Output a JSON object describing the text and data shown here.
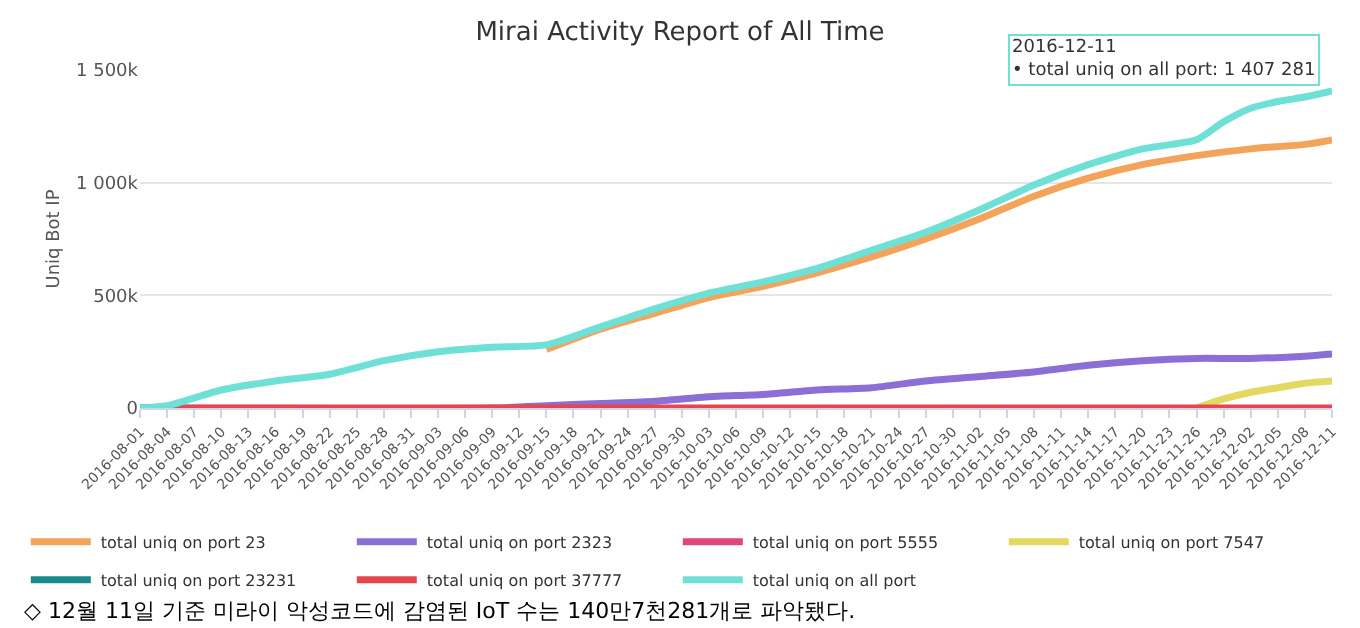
{
  "chart_data": {
    "type": "line",
    "title": "Mirai Activity Report of All Time",
    "ylabel": "Uniq Bot IP",
    "xlim": [
      "2016-08-01",
      "2016-12-11"
    ],
    "xticks": [
      "2016-08-01",
      "2016-08-04",
      "2016-08-07",
      "2016-08-10",
      "2016-08-13",
      "2016-08-16",
      "2016-08-19",
      "2016-08-22",
      "2016-08-25",
      "2016-08-28",
      "2016-08-31",
      "2016-09-03",
      "2016-09-06",
      "2016-09-09",
      "2016-09-12",
      "2016-09-15",
      "2016-09-18",
      "2016-09-21",
      "2016-09-24",
      "2016-09-27",
      "2016-09-30",
      "2016-10-03",
      "2016-10-06",
      "2016-10-09",
      "2016-10-12",
      "2016-10-15",
      "2016-10-18",
      "2016-10-21",
      "2016-10-24",
      "2016-10-27",
      "2016-10-30",
      "2016-11-02",
      "2016-11-05",
      "2016-11-08",
      "2016-11-11",
      "2016-11-14",
      "2016-11-17",
      "2016-11-20",
      "2016-11-23",
      "2016-11-26",
      "2016-11-29",
      "2016-12-02",
      "2016-12-05",
      "2016-12-08",
      "2016-12-11"
    ],
    "ylim": [
      0,
      1500000
    ],
    "yticks": [
      {
        "value": 0,
        "label": "0"
      },
      {
        "value": 500000,
        "label": "500k"
      },
      {
        "value": 1000000,
        "label": "1 000k"
      },
      {
        "value": 1500000,
        "label": "1 500k"
      }
    ],
    "grid": "y",
    "legend": "bottom",
    "marker": "none",
    "line_style": "solid",
    "series": [
      {
        "name": "total uniq on port 23",
        "color": "#f4a45a",
        "x": [
          "2016-09-15",
          "2016-09-21",
          "2016-09-27",
          "2016-10-03",
          "2016-10-09",
          "2016-10-15",
          "2016-10-21",
          "2016-10-27",
          "2016-11-02",
          "2016-11-08",
          "2016-11-14",
          "2016-11-20",
          "2016-11-26",
          "2016-12-02",
          "2016-12-08",
          "2016-12-11"
        ],
        "values": [
          260000,
          350000,
          420000,
          490000,
          540000,
          600000,
          670000,
          750000,
          840000,
          940000,
          1020000,
          1080000,
          1120000,
          1150000,
          1170000,
          1190000
        ]
      },
      {
        "name": "total uniq on port 2323",
        "color": "#8b6fd6",
        "x": [
          "2016-08-01",
          "2016-09-09",
          "2016-09-15",
          "2016-09-21",
          "2016-09-27",
          "2016-10-03",
          "2016-10-09",
          "2016-10-15",
          "2016-10-21",
          "2016-10-27",
          "2016-11-02",
          "2016-11-08",
          "2016-11-14",
          "2016-11-20",
          "2016-11-26",
          "2016-12-02",
          "2016-12-08",
          "2016-12-11"
        ],
        "values": [
          0,
          0,
          10000,
          20000,
          30000,
          50000,
          60000,
          80000,
          90000,
          120000,
          140000,
          160000,
          190000,
          210000,
          220000,
          220000,
          230000,
          240000
        ]
      },
      {
        "name": "total uniq on port 5555",
        "color": "#e0457b"
      },
      {
        "name": "total uniq on port 7547",
        "color": "#e4d960",
        "x": [
          "2016-11-26",
          "2016-11-29",
          "2016-12-02",
          "2016-12-05",
          "2016-12-08",
          "2016-12-11"
        ],
        "values": [
          0,
          40000,
          70000,
          90000,
          110000,
          120000
        ]
      },
      {
        "name": "total uniq on port 23231",
        "color": "#1a8a8a"
      },
      {
        "name": "total uniq on port 37777",
        "color": "#e6474f",
        "x": [
          "2016-08-01",
          "2016-12-11"
        ],
        "values": [
          0,
          0
        ]
      },
      {
        "name": "total uniq on all port",
        "color": "#6ee0d6",
        "x": [
          "2016-08-01",
          "2016-08-04",
          "2016-08-10",
          "2016-08-16",
          "2016-08-22",
          "2016-08-28",
          "2016-09-03",
          "2016-09-09",
          "2016-09-15",
          "2016-09-21",
          "2016-09-27",
          "2016-10-03",
          "2016-10-09",
          "2016-10-15",
          "2016-10-21",
          "2016-10-27",
          "2016-11-02",
          "2016-11-08",
          "2016-11-14",
          "2016-11-20",
          "2016-11-26",
          "2016-11-29",
          "2016-12-02",
          "2016-12-05",
          "2016-12-08",
          "2016-12-11"
        ],
        "values": [
          0,
          10000,
          80000,
          120000,
          150000,
          210000,
          250000,
          270000,
          280000,
          360000,
          440000,
          510000,
          560000,
          620000,
          700000,
          780000,
          880000,
          990000,
          1080000,
          1150000,
          1190000,
          1270000,
          1330000,
          1360000,
          1380000,
          1407281
        ]
      }
    ],
    "annotations": [
      {
        "text": "2016-12-11\n• total uniq on all port: 1 407 281",
        "x": "2016-12-11",
        "y": 1407281
      },
      "◇ 12월 11일 기준 미라이 악성코드에 감염된 IoT 수는 140만7천281개로 파악됐다."
    ]
  }
}
